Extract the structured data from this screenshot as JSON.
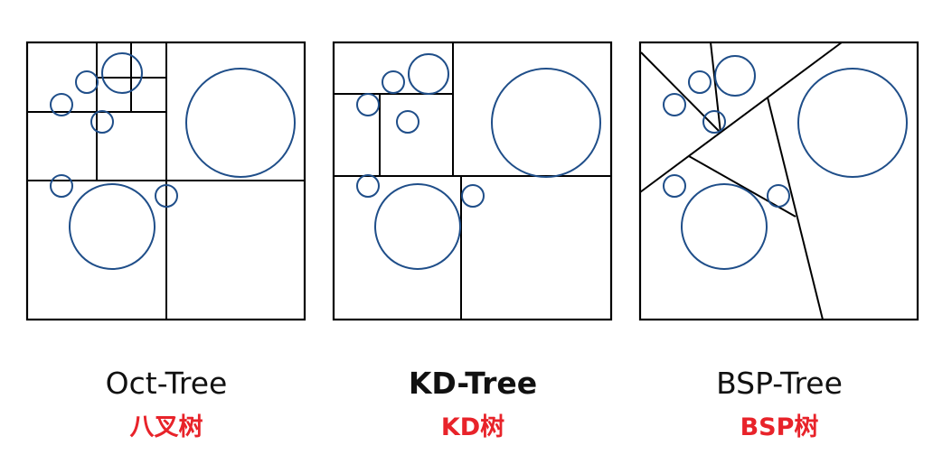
{
  "colors": {
    "frame": "#000000",
    "circle": "#1f4e89",
    "caption": "#111111",
    "subcaption": "#e8232a"
  },
  "panels": [
    {
      "title": "Oct-Tree",
      "subtitle": "八叉树",
      "title_bold": false
    },
    {
      "title": "KD-Tree",
      "subtitle": "KD树",
      "title_bold": true
    },
    {
      "title": "BSP-Tree",
      "subtitle": "BSP树",
      "title_bold": false
    }
  ]
}
